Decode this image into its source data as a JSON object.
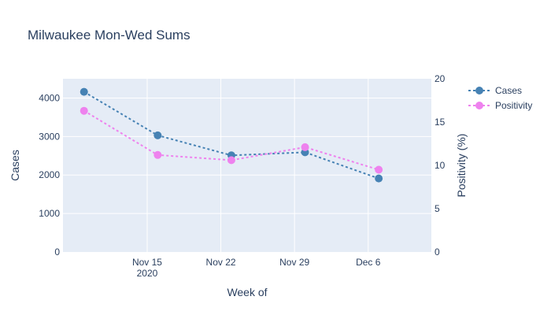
{
  "chart_data": {
    "type": "line",
    "title": "Milwaukee Mon-Wed Sums",
    "xlabel": "Week of",
    "ylabel": "Cases",
    "y2label": "Positivity (%)",
    "x": [
      "2020-11-09",
      "2020-11-16",
      "2020-11-23",
      "2020-11-30",
      "2020-12-07"
    ],
    "xlim": [
      "2020-11-07",
      "2020-12-12"
    ],
    "x_ticks": [
      {
        "date": "2020-11-15",
        "label": "Nov 15",
        "sublabel": "2020"
      },
      {
        "date": "2020-11-22",
        "label": "Nov 22",
        "sublabel": ""
      },
      {
        "date": "2020-11-29",
        "label": "Nov 29",
        "sublabel": ""
      },
      {
        "date": "2020-12-06",
        "label": "Dec 6",
        "sublabel": ""
      }
    ],
    "ylim": [
      0,
      4500
    ],
    "y_ticks": [
      0,
      1000,
      2000,
      3000,
      4000
    ],
    "y2lim": [
      0,
      20
    ],
    "y2_ticks": [
      0,
      5,
      10,
      15,
      20
    ],
    "grid": true,
    "legend_position": "top-right",
    "series": [
      {
        "name": "Cases",
        "axis": "y",
        "color": "#4682b4",
        "line_style": "dotted",
        "values": [
          4160,
          3030,
          2510,
          2590,
          1910
        ]
      },
      {
        "name": "Positivity",
        "axis": "y2",
        "color": "#ee82ee",
        "line_style": "dotted",
        "values": [
          16.3,
          11.2,
          10.6,
          12.1,
          9.5
        ]
      }
    ]
  }
}
